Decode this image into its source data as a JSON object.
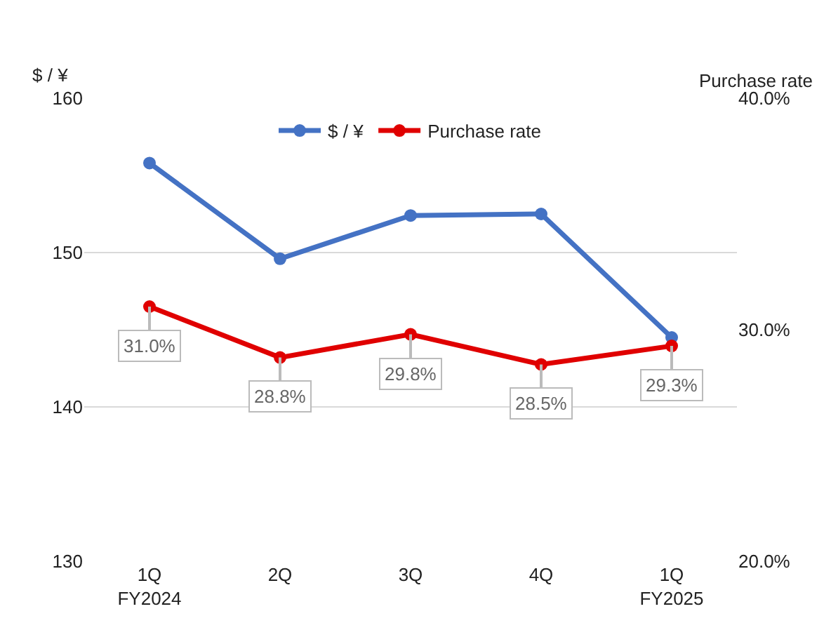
{
  "chart_data": {
    "type": "line",
    "categories": [
      "1Q\nFY2024",
      "2Q",
      "3Q",
      "4Q",
      "1Q\nFY2025"
    ],
    "series": [
      {
        "name": "$ / ¥",
        "color": "#4472c4",
        "values": [
          155.8,
          149.6,
          152.4,
          152.5,
          144.5
        ]
      },
      {
        "name": "Purchase rate",
        "color": "#e00000",
        "axis": "y2",
        "values": [
          31.0,
          28.8,
          29.8,
          28.5,
          29.3
        ],
        "value_labels": [
          "31.0%",
          "28.8%",
          "29.8%",
          "28.5%",
          "29.3%"
        ]
      }
    ],
    "ylabel": "$ / ¥",
    "y2label": "Purchase rate",
    "ylim": [
      130,
      160
    ],
    "yticks": [
      130,
      140,
      150,
      160
    ],
    "y2lim": [
      20,
      40
    ],
    "y2ticks": [
      {
        "value": 20,
        "label": "20.0%"
      },
      {
        "value": 30,
        "label": "30.0%"
      },
      {
        "value": 40,
        "label": "40.0%"
      }
    ],
    "grid": "y",
    "legend": "top",
    "marker": "circle",
    "line_style": "solid"
  }
}
